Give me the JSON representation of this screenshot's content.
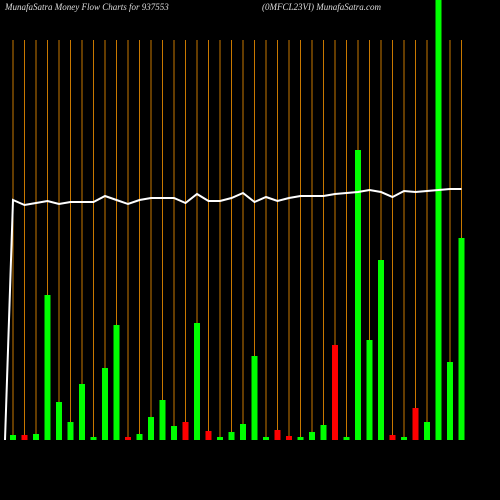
{
  "chart_data": {
    "type": "bar",
    "title": "MunafaSatra  Money Flow  Charts for 937553",
    "subtitle": "(0MFCL23VI) MunafaSatra.com",
    "categories": [
      null,
      null,
      null,
      null,
      null,
      null,
      null,
      null,
      null,
      null,
      null,
      null,
      null,
      null,
      null,
      null,
      null,
      null,
      null,
      null,
      null,
      null,
      null,
      null,
      null,
      null,
      null,
      null,
      null,
      null,
      null,
      null,
      null,
      null,
      null,
      null,
      null,
      null,
      null,
      null
    ],
    "values": [
      5,
      5,
      6,
      145,
      38,
      18,
      56,
      3,
      72,
      115,
      3,
      6,
      23,
      40,
      14,
      18,
      117,
      9,
      3,
      8,
      16,
      84,
      3,
      10,
      4,
      3,
      8,
      15,
      95,
      3,
      290,
      100,
      180,
      5,
      3,
      32,
      18,
      440,
      78,
      202
    ],
    "colors": [
      "#00ff00",
      "#ff0000",
      "#00ff00",
      "#00ff00",
      "#00ff00",
      "#00ff00",
      "#00ff00",
      "#00ff00",
      "#00ff00",
      "#00ff00",
      "#ff0000",
      "#00ff00",
      "#00ff00",
      "#00ff00",
      "#00ff00",
      "#ff0000",
      "#00ff00",
      "#ff0000",
      "#00ff00",
      "#00ff00",
      "#00ff00",
      "#00ff00",
      "#00ff00",
      "#ff0000",
      "#ff0000",
      "#00ff00",
      "#00ff00",
      "#00ff00",
      "#ff0000",
      "#00ff00",
      "#00ff00",
      "#00ff00",
      "#00ff00",
      "#ff0000",
      "#00ff00",
      "#ff0000",
      "#00ff00",
      "#00ff00",
      "#00ff00",
      "#00ff00"
    ],
    "line": {
      "color": "#ffffff",
      "values": [
        240,
        235,
        237,
        239,
        236,
        238,
        238,
        238,
        244,
        240,
        236,
        240,
        242,
        242,
        242,
        237,
        246,
        239,
        239,
        242,
        247,
        238,
        243,
        239,
        242,
        244,
        244,
        244,
        246,
        247,
        248,
        250,
        248,
        243,
        249,
        248,
        249,
        250,
        251,
        251
      ]
    },
    "ylim": [
      0,
      440
    ],
    "grid": true,
    "grid_color": "#c87800"
  }
}
